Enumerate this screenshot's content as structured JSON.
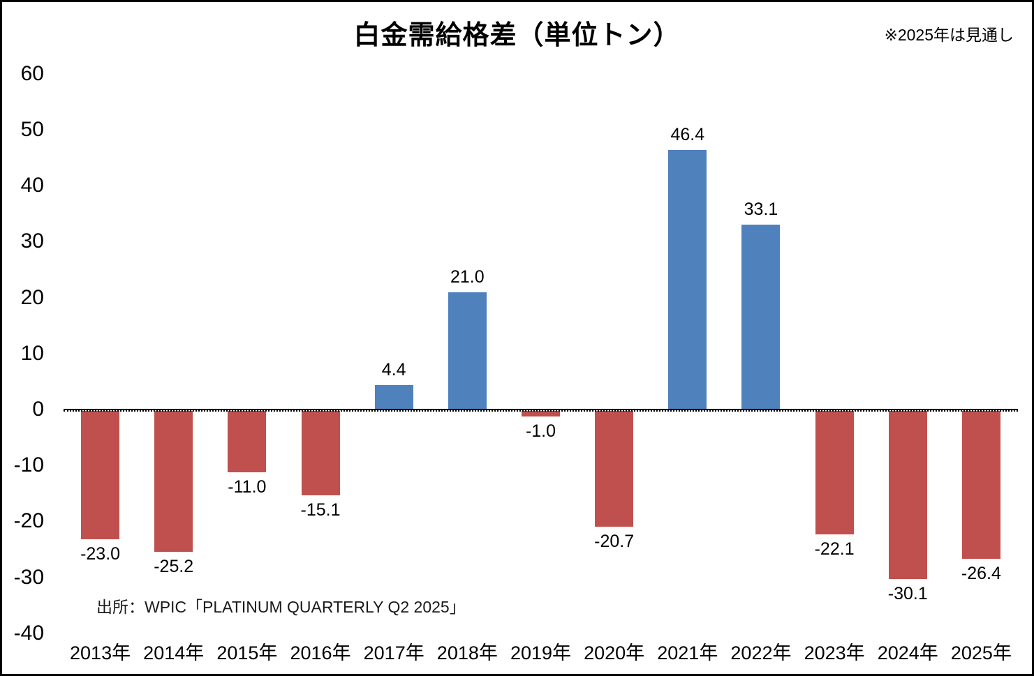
{
  "note": "※2025年は見通し",
  "source": "出所：WPIC「PLATINUM QUARTERLY Q2 2025」",
  "colors": {
    "positive_bar": "#4F81BD",
    "negative_bar": "#C0504D",
    "axis": "#000000",
    "background": "#FFFFFF"
  },
  "chart_data": {
    "type": "bar",
    "title": "白金需給格差（単位トン）",
    "categories": [
      "2013年",
      "2014年",
      "2015年",
      "2016年",
      "2017年",
      "2018年",
      "2019年",
      "2020年",
      "2021年",
      "2022年",
      "2023年",
      "2024年",
      "2025年"
    ],
    "values": [
      -23.0,
      -25.2,
      -11.0,
      -15.1,
      4.4,
      21.0,
      -1.0,
      -20.7,
      46.4,
      33.1,
      -22.1,
      -30.1,
      -26.4
    ],
    "value_labels": [
      "-23.0",
      "-25.2",
      "-11.0",
      "-15.1",
      "4.4",
      "21.0",
      "-1.0",
      "-20.7",
      "46.4",
      "33.1",
      "-22.1",
      "-30.1",
      "-26.4"
    ],
    "xlabel": "",
    "ylabel": "",
    "ylim": [
      -40,
      60
    ],
    "ytick_step": 10,
    "yticks": [
      60,
      50,
      40,
      30,
      20,
      10,
      0,
      -10,
      -20,
      -30,
      -40
    ],
    "grid": false,
    "legend": "none",
    "bar_color_rule": "positive values blue, negative values red",
    "annotations": [
      "※2025年は見通し",
      "出所：WPIC「PLATINUM QUARTERLY Q2 2025」"
    ]
  }
}
